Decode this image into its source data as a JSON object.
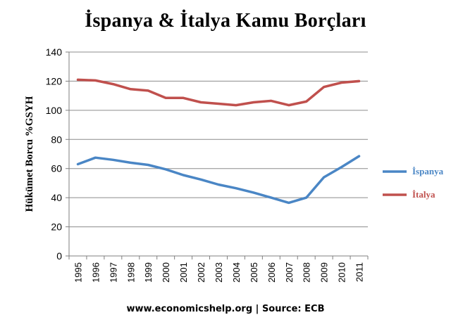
{
  "colors": {
    "spain": "#4a86c5",
    "italy": "#c0504d",
    "grid": "#8c8c8c",
    "axis": "#7f7f7f"
  },
  "chart_data": {
    "type": "line",
    "title": "İspanya & İtalya Kamu Borçları",
    "ylabel": "Hükümet Borcu %GSYH",
    "xlabel": "",
    "source": "www.economicshelp.org | Source: ECB",
    "ylim": [
      0,
      140
    ],
    "yticks": [
      0,
      20,
      40,
      60,
      80,
      100,
      120,
      140
    ],
    "grid": "horizontal",
    "legend_position": "right",
    "categories": [
      "1995",
      "1996",
      "1997",
      "1998",
      "1999",
      "2000",
      "2001",
      "2002",
      "2003",
      "2004",
      "2005",
      "2006",
      "2007",
      "2008",
      "2009",
      "2010",
      "2011"
    ],
    "series": [
      {
        "name": "İspanya",
        "color": "#4a86c5",
        "values": [
          63,
          67.5,
          66,
          64,
          62.5,
          59.5,
          55.5,
          52.5,
          49,
          46.5,
          43.5,
          40,
          36.5,
          40,
          54,
          61,
          68.5
        ]
      },
      {
        "name": "İtalya",
        "color": "#c0504d",
        "values": [
          121,
          120.5,
          118,
          114.5,
          113.5,
          108.5,
          108.5,
          105.5,
          104.5,
          103.5,
          105.5,
          106.5,
          103.5,
          106,
          116,
          119,
          120
        ]
      }
    ]
  }
}
